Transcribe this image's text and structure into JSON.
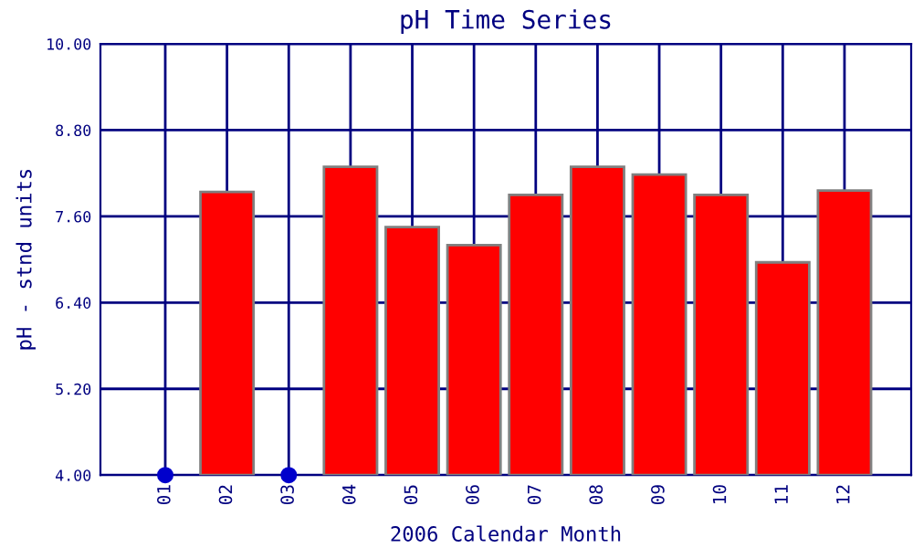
{
  "chart_data": {
    "type": "bar",
    "title": "pH Time Series",
    "xlabel": "2006 Calendar Month",
    "ylabel": "pH - stnd units",
    "categories": [
      "01",
      "02",
      "03",
      "04",
      "05",
      "06",
      "07",
      "08",
      "09",
      "10",
      "11",
      "12"
    ],
    "series": [
      {
        "color": "#ff0000",
        "values": [
          null,
          7.94,
          null,
          8.29,
          7.45,
          7.2,
          7.9,
          8.29,
          8.18,
          7.9,
          6.96,
          7.96
        ]
      },
      {
        "type": "scatter",
        "color": "#0000cc",
        "x": [
          "01",
          "03"
        ],
        "values": [
          4.0,
          4.0
        ]
      }
    ],
    "ylim": [
      4.0,
      10.0
    ],
    "yticks": [
      {
        "value": 4.0,
        "label": "4.00"
      },
      {
        "value": 5.2,
        "label": "5.20"
      },
      {
        "value": 6.4,
        "label": "6.40"
      },
      {
        "value": 7.6,
        "label": "7.60"
      },
      {
        "value": 8.8,
        "label": "8.80"
      },
      {
        "value": 10.0,
        "label": "10.00"
      }
    ],
    "grid": true,
    "marker": "circle"
  }
}
